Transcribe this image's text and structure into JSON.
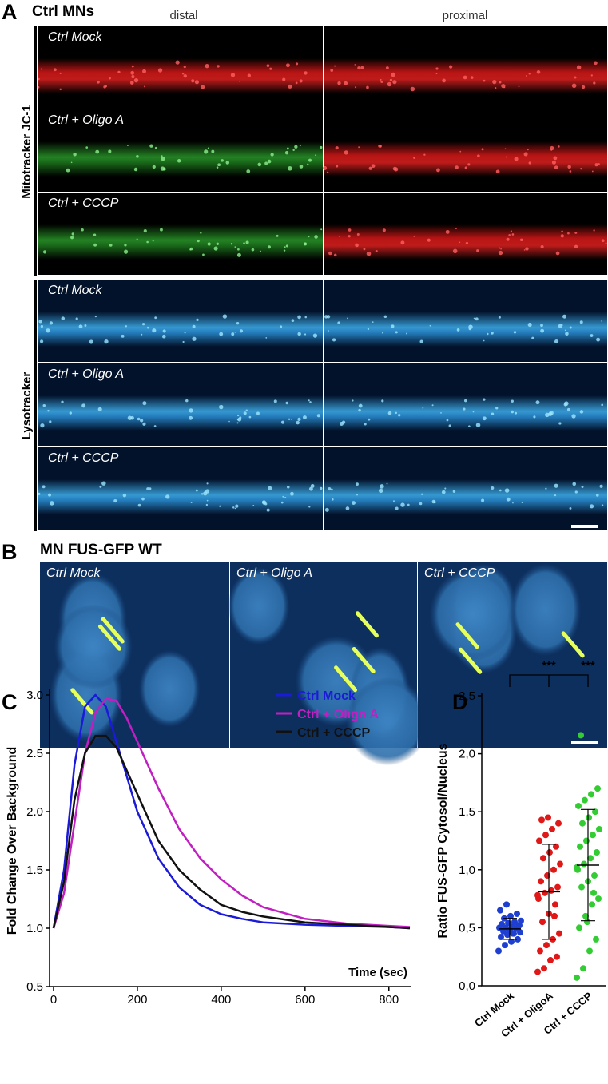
{
  "panel_a": {
    "letter": "A",
    "title": "Ctrl MNs",
    "columns": [
      "distal",
      "proximal"
    ],
    "groups": [
      {
        "label": "Mitotracker JC-1",
        "rows": [
          "Ctrl Mock",
          "Ctrl + Oligo A",
          "Ctrl + CCCP"
        ]
      },
      {
        "label": "Lysotracker",
        "rows": [
          "Ctrl Mock",
          "Ctrl + Oligo A",
          "Ctrl + CCCP"
        ]
      }
    ]
  },
  "panel_b": {
    "letter": "B",
    "title": "MN FUS-GFP WT",
    "images": [
      "Ctrl Mock",
      "Ctrl + Oligo A",
      "Ctrl + CCCP"
    ]
  },
  "chart_data": [
    {
      "type": "line",
      "letter": "C",
      "ylabel": "Fold Change Over Background",
      "xlabel": "Time (sec)",
      "x": [
        0,
        25,
        50,
        75,
        100,
        125,
        150,
        175,
        200,
        250,
        300,
        350,
        400,
        450,
        500,
        600,
        700,
        800,
        850
      ],
      "series": [
        {
          "name": "Ctrl Mock",
          "color": "#1a1ad8",
          "values": [
            1.0,
            1.5,
            2.4,
            2.9,
            3.0,
            2.9,
            2.6,
            2.3,
            2.0,
            1.6,
            1.35,
            1.2,
            1.12,
            1.08,
            1.05,
            1.03,
            1.02,
            1.01,
            1.0
          ]
        },
        {
          "name": "Ctrl + Oligo A",
          "color": "#c21fc2",
          "values": [
            1.0,
            1.3,
            1.9,
            2.5,
            2.85,
            2.97,
            2.95,
            2.8,
            2.6,
            2.2,
            1.85,
            1.6,
            1.42,
            1.28,
            1.18,
            1.08,
            1.04,
            1.02,
            1.01
          ]
        },
        {
          "name": "Ctrl + CCCP",
          "color": "#111111",
          "values": [
            1.0,
            1.4,
            2.1,
            2.5,
            2.65,
            2.65,
            2.55,
            2.35,
            2.15,
            1.75,
            1.5,
            1.33,
            1.2,
            1.14,
            1.1,
            1.05,
            1.03,
            1.01,
            1.0
          ]
        }
      ],
      "xlim": [
        0,
        850
      ],
      "xticks": [
        0,
        200,
        400,
        600,
        800
      ],
      "ylim": [
        0.5,
        3.0
      ],
      "yticks": [
        0.5,
        {
          "value": 1,
          "label": "1.0"
        },
        1.5,
        {
          "value": 2,
          "label": "2.0"
        },
        2.5,
        {
          "value": 3,
          "label": "3.0"
        }
      ]
    },
    {
      "type": "strip",
      "letter": "D",
      "ylabel": "Ratio FUS-GFP Cytosol/Nucleus",
      "categories": [
        "Ctrl Mock",
        "Ctrl + OligoA",
        "Ctrl + CCCP"
      ],
      "colors": [
        "#1f3fd0",
        "#e01818",
        "#33cc33"
      ],
      "values": [
        [
          0.3,
          0.35,
          0.38,
          0.4,
          0.42,
          0.44,
          0.45,
          0.46,
          0.47,
          0.48,
          0.49,
          0.5,
          0.5,
          0.51,
          0.52,
          0.53,
          0.54,
          0.55,
          0.56,
          0.58,
          0.6,
          0.62,
          0.65,
          0.7,
          0.45,
          0.52
        ],
        [
          0.12,
          0.15,
          0.22,
          0.25,
          0.3,
          0.35,
          0.4,
          0.45,
          0.55,
          0.62,
          0.7,
          0.75,
          0.8,
          0.82,
          0.85,
          0.9,
          0.95,
          1.0,
          1.05,
          1.1,
          1.15,
          1.2,
          1.25,
          1.3,
          1.35,
          1.4,
          1.43,
          1.45,
          0.6,
          0.78
        ],
        [
          0.07,
          0.15,
          0.3,
          0.4,
          0.5,
          0.6,
          0.7,
          0.75,
          0.85,
          0.9,
          0.95,
          1.0,
          1.05,
          1.1,
          1.15,
          1.2,
          1.25,
          1.3,
          1.35,
          1.4,
          1.45,
          1.5,
          1.55,
          1.6,
          1.65,
          1.7,
          2.16,
          0.55,
          0.8,
          1.02
        ]
      ],
      "means": [
        0.49,
        0.81,
        1.04
      ],
      "errors": [
        0.09,
        0.41,
        0.48
      ],
      "annotations": [
        "***",
        "***"
      ],
      "ylim": [
        0,
        2.5
      ],
      "yticks": [
        {
          "value": 0,
          "label": "0,0"
        },
        {
          "value": 0.5,
          "label": "0,5"
        },
        {
          "value": 1,
          "label": "1,0"
        },
        {
          "value": 1.5,
          "label": "1,5"
        },
        {
          "value": 2,
          "label": "2,0"
        },
        {
          "value": 2.5,
          "label": "2,5"
        }
      ]
    }
  ]
}
